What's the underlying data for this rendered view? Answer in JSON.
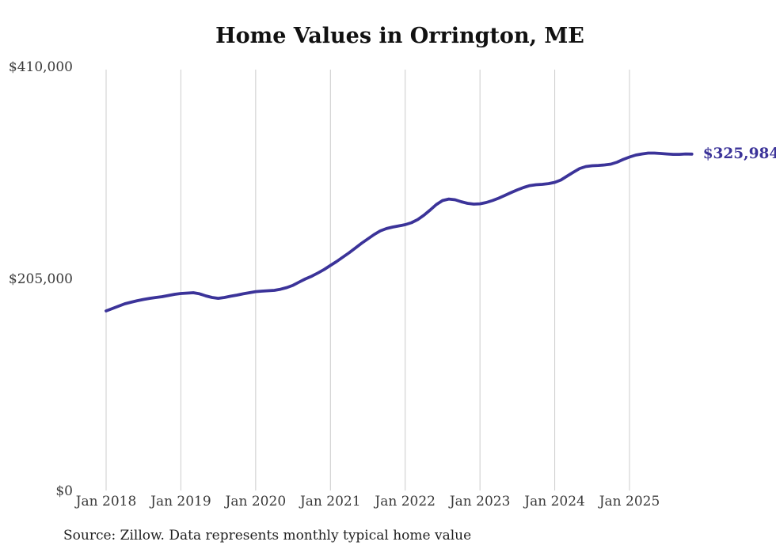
{
  "title": "Home Values in Orrington, ME",
  "end_label": "$325,984",
  "source": {
    "text": "Source: Zillow. Data represents monthly typical home value"
  },
  "colors": {
    "line": "#3b3399",
    "grid": "#cccccc",
    "axis_text": "#3a3a3a",
    "title_text": "#111111",
    "end_label_text": "#3b3399"
  },
  "y_axis": {
    "ticks": [
      {
        "label": "$410,000",
        "value": 410000
      },
      {
        "label": "$205,000",
        "value": 205000
      },
      {
        "label": "$0",
        "value": 0
      }
    ]
  },
  "x_axis": {
    "ticks": [
      "Jan 2018",
      "Jan 2019",
      "Jan 2020",
      "Jan 2021",
      "Jan 2022",
      "Jan 2023",
      "Jan 2024",
      "Jan 2025"
    ]
  },
  "chart_data": {
    "type": "line",
    "title": "Home Values in Orrington, ME",
    "xlabel": "",
    "ylabel": "",
    "ylim": [
      0,
      410000
    ],
    "grid": "vertical-only",
    "legend": "none",
    "series_name": "Typical home value (USD)",
    "end_annotation": "$325,984",
    "x": [
      "2018-01",
      "2018-02",
      "2018-03",
      "2018-04",
      "2018-05",
      "2018-06",
      "2018-07",
      "2018-08",
      "2018-09",
      "2018-10",
      "2018-11",
      "2018-12",
      "2019-01",
      "2019-02",
      "2019-03",
      "2019-04",
      "2019-05",
      "2019-06",
      "2019-07",
      "2019-08",
      "2019-09",
      "2019-10",
      "2019-11",
      "2019-12",
      "2020-01",
      "2020-02",
      "2020-03",
      "2020-04",
      "2020-05",
      "2020-06",
      "2020-07",
      "2020-08",
      "2020-09",
      "2020-10",
      "2020-11",
      "2020-12",
      "2021-01",
      "2021-02",
      "2021-03",
      "2021-04",
      "2021-05",
      "2021-06",
      "2021-07",
      "2021-08",
      "2021-09",
      "2021-10",
      "2021-11",
      "2021-12",
      "2022-01",
      "2022-02",
      "2022-03",
      "2022-04",
      "2022-05",
      "2022-06",
      "2022-07",
      "2022-08",
      "2022-09",
      "2022-10",
      "2022-11",
      "2022-12",
      "2023-01",
      "2023-02",
      "2023-03",
      "2023-04",
      "2023-05",
      "2023-06",
      "2023-07",
      "2023-08",
      "2023-09",
      "2023-10",
      "2023-11",
      "2023-12",
      "2024-01",
      "2024-02",
      "2024-03",
      "2024-04",
      "2024-05",
      "2024-06",
      "2024-07",
      "2024-08",
      "2024-09",
      "2024-10",
      "2024-11",
      "2024-12",
      "2025-01",
      "2025-02",
      "2025-03",
      "2025-04",
      "2025-05",
      "2025-06",
      "2025-07",
      "2025-08",
      "2025-09",
      "2025-10",
      "2025-11"
    ],
    "values": [
      174400,
      176700,
      179000,
      181300,
      182800,
      184300,
      185500,
      186600,
      187400,
      188200,
      189300,
      190500,
      191200,
      191600,
      192000,
      190900,
      188900,
      187400,
      186600,
      187400,
      188600,
      189700,
      190900,
      192000,
      193100,
      193500,
      193900,
      194300,
      195400,
      197000,
      199200,
      202300,
      205400,
      208000,
      211100,
      214500,
      218400,
      222200,
      226400,
      230600,
      235200,
      239800,
      244000,
      248200,
      251700,
      254000,
      255500,
      256600,
      257800,
      259700,
      262700,
      266900,
      271900,
      277300,
      281100,
      282600,
      281900,
      280000,
      278400,
      277700,
      278000,
      279200,
      281100,
      283400,
      286100,
      288800,
      291400,
      293700,
      295600,
      296400,
      296800,
      297500,
      298700,
      301000,
      304800,
      308600,
      312100,
      314000,
      314800,
      315100,
      315500,
      316300,
      318200,
      320900,
      323200,
      325100,
      326200,
      327000,
      327000,
      326600,
      326200,
      325800,
      325800,
      326200,
      325984
    ]
  }
}
